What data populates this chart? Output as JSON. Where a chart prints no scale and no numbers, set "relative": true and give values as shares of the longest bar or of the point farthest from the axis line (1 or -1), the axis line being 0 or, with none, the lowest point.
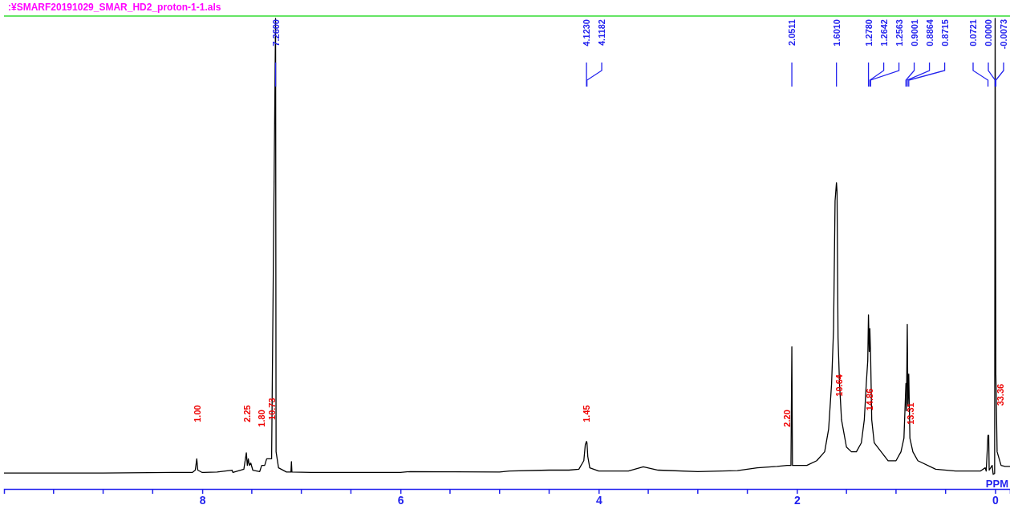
{
  "chart_data": {
    "type": "line",
    "relative": true,
    "title": ":¥SMARF20191029_SMAR_HD2_proton-1-1.als",
    "xlabel": "PPM",
    "xlim": [
      10,
      -0.15
    ],
    "xticks": [
      8,
      6,
      4,
      2,
      0
    ],
    "tick_labels": "x",
    "grid": false,
    "marker": "none",
    "line_style": "solid",
    "series": [
      {
        "color": "#000000",
        "x": [
          10,
          9,
          8.3,
          8.1,
          8.07,
          8.055,
          8.045,
          8,
          7.85,
          7.7,
          7.69,
          7.58,
          7.555,
          7.545,
          7.535,
          7.525,
          7.51,
          7.49,
          7.42,
          7.4,
          7.37,
          7.35,
          7.3,
          7.26,
          7.255,
          7.23,
          7.15,
          7.105,
          7.1,
          7.095,
          6.9,
          6,
          5.9,
          5,
          4.9,
          4.5,
          4.3,
          4.2,
          4.15,
          4.135,
          4.123,
          4.1182,
          4.11,
          4.09,
          4,
          3.7,
          3.55,
          3.4,
          3,
          2.6,
          2.4,
          2.2,
          2.1,
          2.06,
          2.0511,
          2.045,
          1.9,
          1.8,
          1.72,
          1.68,
          1.65,
          1.63,
          1.615,
          1.601,
          1.595,
          1.585,
          1.57,
          1.55,
          1.5,
          1.45,
          1.4,
          1.35,
          1.32,
          1.3,
          1.285,
          1.278,
          1.27,
          1.2642,
          1.2563,
          1.245,
          1.22,
          1.15,
          1.08,
          1,
          0.95,
          0.92,
          0.9001,
          0.895,
          0.8864,
          0.88,
          0.8715,
          0.86,
          0.83,
          0.78,
          0.6,
          0.4,
          0.15,
          0.1,
          0.09,
          0.0721,
          0.065,
          0.06,
          0.03,
          0.02,
          0.005,
          0,
          -0.0073,
          -0.02,
          -0.06,
          -0.1,
          -0.15
        ],
        "values": [
          0.034,
          0.034,
          0.035,
          0.035,
          0.04,
          0.064,
          0.04,
          0.035,
          0.036,
          0.04,
          0.035,
          0.042,
          0.077,
          0.05,
          0.064,
          0.05,
          0.055,
          0.04,
          0.037,
          0.05,
          0.05,
          0.064,
          0.064,
          1,
          0.079,
          0.045,
          0.036,
          0.036,
          0.058,
          0.036,
          0.035,
          0.035,
          0.037,
          0.036,
          0.038,
          0.04,
          0.04,
          0.042,
          0.06,
          0.094,
          0.101,
          0.098,
          0.069,
          0.045,
          0.038,
          0.038,
          0.047,
          0.04,
          0.037,
          0.039,
          0.045,
          0.048,
          0.05,
          0.05,
          0.302,
          0.05,
          0.05,
          0.06,
          0.079,
          0.127,
          0.224,
          0.341,
          0.612,
          0.651,
          0.632,
          0.321,
          0.224,
          0.147,
          0.089,
          0.079,
          0.079,
          0.098,
          0.147,
          0.224,
          0.273,
          0.37,
          0.292,
          0.341,
          0.283,
          0.147,
          0.098,
          0.079,
          0.06,
          0.06,
          0.079,
          0.108,
          0.224,
          0.166,
          0.35,
          0.176,
          0.244,
          0.108,
          0.079,
          0.06,
          0.042,
          0.038,
          0.038,
          0.045,
          0.038,
          0.114,
          0.114,
          0.04,
          0.05,
          0.031,
          0.033,
          1,
          0.244,
          0.079,
          0.05,
          0.048,
          0.048
        ]
      }
    ],
    "annotations": [
      "7.2600",
      "4.1230",
      "4.1182",
      "2.0511",
      "1.6010",
      "1.2780",
      "1.2642",
      "1.2563",
      "0.9001",
      "0.8864",
      "0.8715",
      "0.0721",
      "0.0000",
      "-0.0073",
      "1.00",
      "2.25",
      "1.80",
      "10.73",
      "1.45",
      "2.20",
      "10.64",
      "14.86",
      "13.31",
      "33.36"
    ]
  }
}
